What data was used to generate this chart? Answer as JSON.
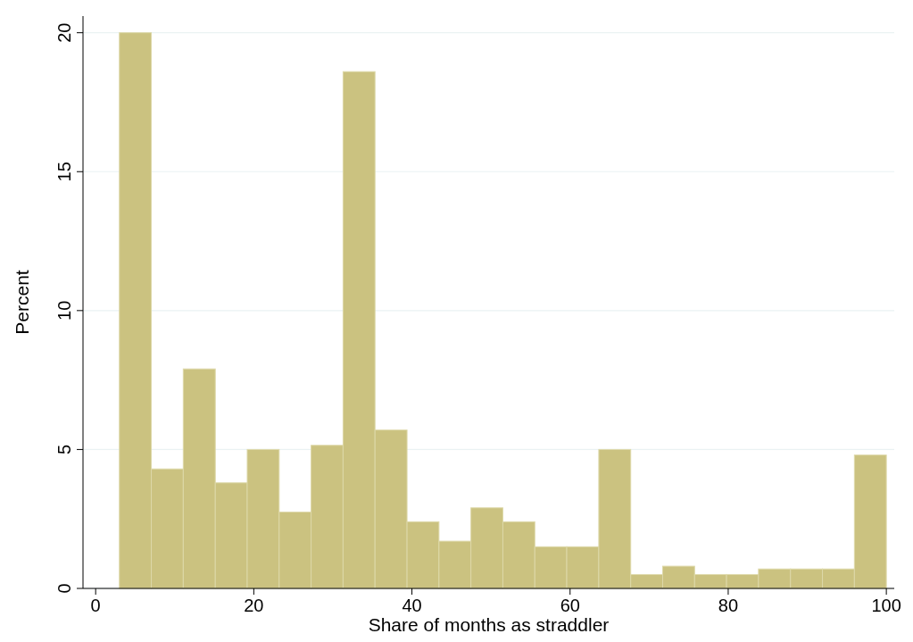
{
  "chart_data": {
    "type": "histogram",
    "xlabel": "Share of months as straddler",
    "ylabel": "Percent",
    "bins": [
      3,
      7.04,
      11.08,
      15.13,
      19.17,
      23.21,
      27.25,
      31.29,
      35.33,
      39.38,
      43.42,
      47.46,
      51.5,
      55.54,
      59.58,
      63.63,
      67.67,
      71.71,
      75.75,
      79.79,
      83.83,
      87.88,
      91.92,
      95.96,
      100
    ],
    "values": [
      20.0,
      4.3,
      7.9,
      3.8,
      5.0,
      2.75,
      5.15,
      18.6,
      5.7,
      2.4,
      1.7,
      2.9,
      2.4,
      1.5,
      1.5,
      5.0,
      0.5,
      0.8,
      0.5,
      0.5,
      0.7,
      0.7,
      0.7,
      4.8
    ],
    "color": "#cbc280",
    "xlim": [
      -1.6,
      101
    ],
    "xticks": [
      0,
      20,
      40,
      60,
      80,
      100
    ],
    "ylim": [
      0,
      20.6
    ],
    "yticks": [
      0,
      5,
      10,
      15,
      20
    ],
    "grid": "y"
  }
}
